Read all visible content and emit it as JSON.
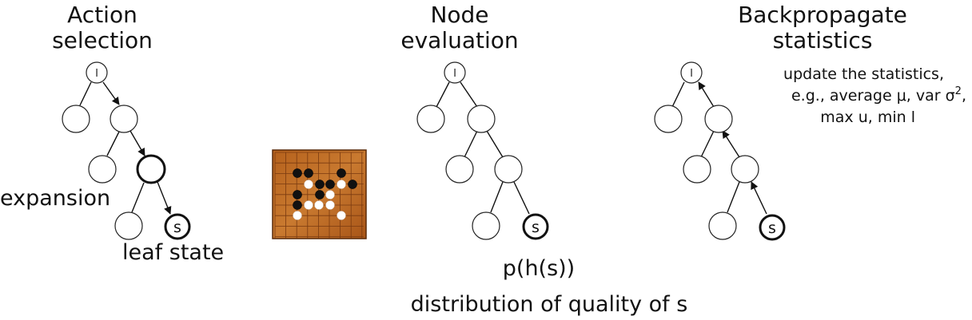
{
  "panels": {
    "selection": {
      "title_line1": "Action",
      "title_line2": "selection",
      "expansion_label": "expansion",
      "leaf_label": "leaf state",
      "root_letter": "l",
      "leaf_letter": "s"
    },
    "evaluation": {
      "title_line1": "Node",
      "title_line2": "evaluation",
      "formula": "p(h(s))",
      "caption": "distribution of quality of s",
      "root_letter": "l",
      "leaf_letter": "s"
    },
    "backprop": {
      "title_line1": "Backpropagate",
      "title_line2": "statistics",
      "note_line1": "update the statistics,",
      "note_line2_prefix": "e.g., average μ, var σ",
      "note_line2_sup": "2",
      "note_line2_suffix": ",",
      "note_line3": "max u, min l",
      "root_letter": "l",
      "leaf_letter": "s"
    }
  },
  "board": {
    "board_color": "#c06a24",
    "line_color": "#7a3a10",
    "black_stones": 9,
    "white_stones": 8
  }
}
